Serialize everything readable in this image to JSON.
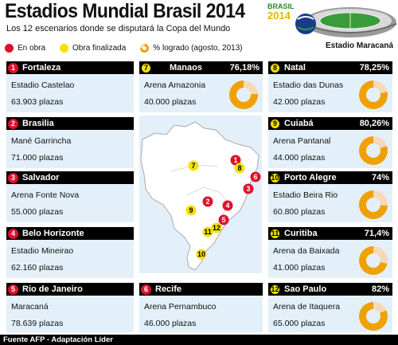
{
  "title": "Estadios Mundial Brasil 2014",
  "subtitle": "Los 12 escenarios donde se disputará la Copa del Mundo",
  "legend": {
    "in_progress": "En obra",
    "finished": "Obra finalizada",
    "percent": "% logrado (agosto, 2013)"
  },
  "logo": {
    "line1": "BRASIL",
    "line2": "2014"
  },
  "stadium_caption": "Estadio Maracaná",
  "colors": {
    "in_progress": "#e0102d",
    "finished": "#f4e000",
    "donut": "#f0a000",
    "donut_rest": "#f6d9b8",
    "card_bg": "#e3f0fa"
  },
  "cards": {
    "c1": {
      "num": "1",
      "city": "Fortaleza",
      "stadium": "Estadio Castelao",
      "capacity": "63.903 plazas"
    },
    "c2": {
      "num": "2",
      "city": "Brasilia",
      "stadium": "Mané Garrincha",
      "capacity": "71.000 plazas"
    },
    "c3": {
      "num": "3",
      "city": "Salvador",
      "stadium": "Arena Fonte Nova",
      "capacity": "55.000 plazas"
    },
    "c4": {
      "num": "4",
      "city": "Belo Horizonte",
      "stadium": "Estadio Mineirao",
      "capacity": "62.160 plazas"
    },
    "c5": {
      "num": "5",
      "city": "Rio de Janeiro",
      "stadium": "Maracaná",
      "capacity": "78.639 plazas"
    },
    "c6": {
      "num": "6",
      "city": "Recife",
      "stadium": "Arena Pernambuco",
      "capacity": "46.000 plazas"
    },
    "c7": {
      "num": "7",
      "city": "Manaos",
      "percent": "76,18%",
      "percent_value": 76.18,
      "stadium": "Arena Amazonia",
      "capacity": "40.000 plazas"
    },
    "c8": {
      "num": "8",
      "city": "Natal",
      "percent": "78,25%",
      "percent_value": 78.25,
      "stadium": "Estadio das Dunas",
      "capacity": "42.000 plazas"
    },
    "c9": {
      "num": "9",
      "city": "Cuiabá",
      "percent": "80,26%",
      "percent_value": 80.26,
      "stadium": "Arena Pantanal",
      "capacity": "44.000 plazas"
    },
    "c10": {
      "num": "10",
      "city": "Porto Alegre",
      "percent": "74%",
      "percent_value": 74,
      "stadium": "Estadio Beira Rio",
      "capacity": "60.800 plazas"
    },
    "c11": {
      "num": "11",
      "city": "Curitiba",
      "percent": "71,4%",
      "percent_value": 71.4,
      "stadium": "Arena da Baixada",
      "capacity": "41.000 plazas"
    },
    "c12": {
      "num": "12",
      "city": "Sao Paulo",
      "percent": "82%",
      "percent_value": 82,
      "stadium": "Arena de Itaquera",
      "capacity": "65.000 plazas"
    }
  },
  "map_markers": [
    {
      "num": "1",
      "status": "finished_red"
    },
    {
      "num": "2",
      "status": "red"
    },
    {
      "num": "3",
      "status": "red"
    },
    {
      "num": "4",
      "status": "red"
    },
    {
      "num": "5",
      "status": "red"
    },
    {
      "num": "6",
      "status": "red"
    },
    {
      "num": "7",
      "status": "yellow"
    },
    {
      "num": "8",
      "status": "yellow"
    },
    {
      "num": "9",
      "status": "yellow"
    },
    {
      "num": "10",
      "status": "yellow"
    },
    {
      "num": "11",
      "status": "yellow"
    },
    {
      "num": "12",
      "status": "yellow"
    }
  ],
  "source": "Fuente AFP - Adaptación Líder"
}
